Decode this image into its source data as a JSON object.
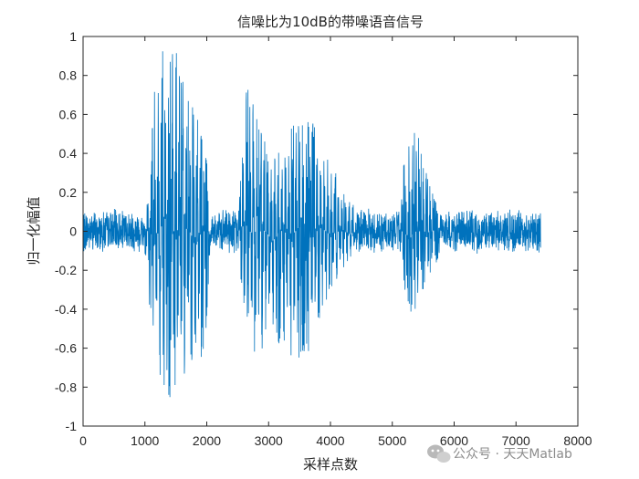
{
  "chart_data": {
    "type": "line",
    "title": "信噪比为10dB的带噪语音信号",
    "xlabel": "采样点数",
    "ylabel": "归一化幅值",
    "xlim": [
      0,
      8000
    ],
    "ylim": [
      -1,
      1
    ],
    "xticks": [
      0,
      1000,
      2000,
      3000,
      4000,
      5000,
      6000,
      7000,
      8000
    ],
    "yticks": [
      -1,
      -0.8,
      -0.6,
      -0.4,
      -0.2,
      0,
      0.2,
      0.4,
      0.6,
      0.8,
      1
    ],
    "xtick_labels": [
      "0",
      "1000",
      "2000",
      "3000",
      "4000",
      "5000",
      "6000",
      "7000",
      "8000"
    ],
    "ytick_labels": [
      "-1",
      "-0.8",
      "-0.6",
      "-0.4",
      "-0.2",
      "0",
      "0.2",
      "0.4",
      "0.6",
      "0.8",
      "1"
    ],
    "grid": false,
    "box": true,
    "series_color": "#0072BD",
    "series": [
      {
        "name": "",
        "n_samples": 7400,
        "noise_floor": 0.1,
        "envelope": {
          "x": [
            0,
            1000,
            1050,
            1150,
            1300,
            1400,
            1550,
            1700,
            1850,
            1980,
            2050,
            2500,
            2600,
            2650,
            2800,
            3000,
            3200,
            3400,
            3600,
            3750,
            3850,
            3950,
            4100,
            4250,
            4400,
            5100,
            5200,
            5300,
            5400,
            5500,
            5650,
            5800,
            7400
          ],
          "upper": [
            0.12,
            0.12,
            0.25,
            0.75,
            0.97,
            1.0,
            0.9,
            0.75,
            0.6,
            0.45,
            0.12,
            0.12,
            0.5,
            0.85,
            0.6,
            0.4,
            0.48,
            0.55,
            0.6,
            0.55,
            0.48,
            0.42,
            0.3,
            0.2,
            0.12,
            0.12,
            0.4,
            0.6,
            0.55,
            0.35,
            0.2,
            0.12,
            0.12
          ],
          "lower": [
            -0.12,
            -0.12,
            -0.3,
            -0.65,
            -0.8,
            -0.88,
            -0.85,
            -0.75,
            -0.7,
            -0.6,
            -0.12,
            -0.12,
            -0.4,
            -0.5,
            -0.68,
            -0.55,
            -0.58,
            -0.65,
            -0.68,
            -0.55,
            -0.45,
            -0.35,
            -0.25,
            -0.18,
            -0.12,
            -0.12,
            -0.3,
            -0.42,
            -0.4,
            -0.3,
            -0.2,
            -0.12,
            -0.12
          ]
        }
      }
    ]
  },
  "watermark": {
    "text": "公众号 · 天天Matlab",
    "icon": "wechat-icon"
  }
}
